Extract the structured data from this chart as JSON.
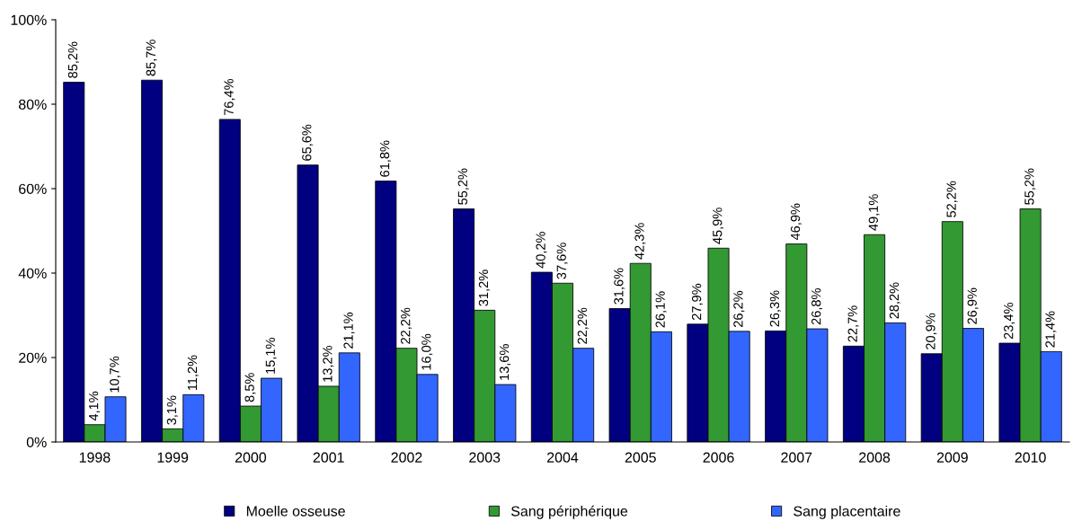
{
  "chart_data": {
    "type": "bar",
    "categories": [
      "1998",
      "1999",
      "2000",
      "2001",
      "2002",
      "2003",
      "2004",
      "2005",
      "2006",
      "2007",
      "2008",
      "2009",
      "2010"
    ],
    "series": [
      {
        "name": "Moelle osseuse",
        "color": "#000080",
        "values": [
          85.2,
          85.7,
          76.4,
          65.6,
          61.8,
          55.2,
          40.2,
          31.6,
          27.9,
          26.3,
          22.7,
          20.9,
          23.4
        ],
        "value_labels": [
          "85,2%",
          "85,7%",
          "76,4%",
          "65,6%",
          "61,8%",
          "55,2%",
          "40,2%",
          "31,6%",
          "27,9%",
          "26,3%",
          "22,7%",
          "20,9%",
          "23,4%"
        ]
      },
      {
        "name": "Sang périphérique",
        "color": "#339933",
        "values": [
          4.1,
          3.1,
          8.5,
          13.2,
          22.2,
          31.2,
          37.6,
          42.3,
          45.9,
          46.9,
          49.1,
          52.2,
          55.2
        ],
        "value_labels": [
          "4,1%",
          "3,1%",
          "8,5%",
          "13,2%",
          "22,2%",
          "31,2%",
          "37,6%",
          "42,3%",
          "45,9%",
          "46,9%",
          "49,1%",
          "52,2%",
          "55,2%"
        ]
      },
      {
        "name": "Sang placentaire",
        "color": "#3366ff",
        "values": [
          10.7,
          11.2,
          15.1,
          21.1,
          16.0,
          13.6,
          22.2,
          26.1,
          26.2,
          26.8,
          28.2,
          26.9,
          21.4
        ],
        "value_labels": [
          "10,7%",
          "11,2%",
          "15,1%",
          "21,1%",
          "16,0%",
          "13,6%",
          "22,2%",
          "26,1%",
          "26,2%",
          "26,8%",
          "28,2%",
          "26,9%",
          "21,4%"
        ]
      }
    ],
    "ylim": [
      0,
      100
    ],
    "yticks": [
      {
        "value": 0,
        "label": "0%"
      },
      {
        "value": 20,
        "label": "20%"
      },
      {
        "value": 40,
        "label": "40%"
      },
      {
        "value": 60,
        "label": "60%"
      },
      {
        "value": 80,
        "label": "80%"
      },
      {
        "value": 100,
        "label": "100%"
      }
    ],
    "grid": false,
    "legend": "bottom"
  }
}
